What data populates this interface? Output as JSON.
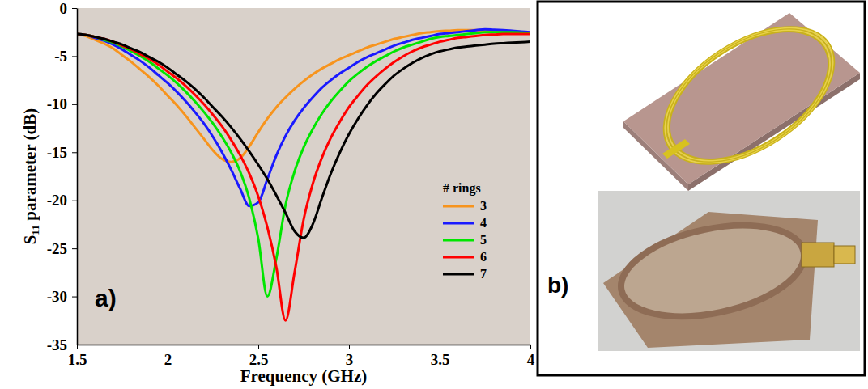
{
  "chart_data": {
    "type": "line",
    "panel_label": "a)",
    "x_label": "Frequency (GHz)",
    "y_label": "S₁₁ parameter  (dB)",
    "legend_title": "# rings",
    "legend": "right",
    "grid": false,
    "xlim": [
      1.5,
      4
    ],
    "ylim": [
      -35,
      0
    ],
    "xticks": [
      1.5,
      2,
      2.5,
      3,
      3.5,
      4
    ],
    "yticks": [
      -35,
      -30,
      -25,
      -20,
      -15,
      -10,
      -5,
      0
    ],
    "x": [
      1.5,
      1.55,
      1.6,
      1.65,
      1.7,
      1.75,
      1.8,
      1.85,
      1.9,
      1.95,
      2.0,
      2.05,
      2.1,
      2.15,
      2.2,
      2.25,
      2.3,
      2.35,
      2.4,
      2.45,
      2.5,
      2.55,
      2.6,
      2.65,
      2.7,
      2.75,
      2.8,
      2.85,
      2.9,
      2.95,
      3.0,
      3.05,
      3.1,
      3.15,
      3.2,
      3.25,
      3.3,
      3.35,
      3.4,
      3.45,
      3.5,
      3.55,
      3.6,
      3.65,
      3.7,
      3.75,
      3.8,
      3.85,
      3.9,
      3.95,
      4.0
    ],
    "series": [
      {
        "name": "3",
        "color": "#f7941d",
        "values": [
          -2.7,
          -2.9,
          -3.3,
          -3.7,
          -4.2,
          -4.9,
          -5.6,
          -6.4,
          -7.2,
          -8.1,
          -9.1,
          -10.1,
          -11.2,
          -12.4,
          -13.6,
          -14.8,
          -15.7,
          -16.0,
          -15.6,
          -14.4,
          -12.9,
          -11.5,
          -10.3,
          -9.3,
          -8.4,
          -7.6,
          -6.9,
          -6.3,
          -5.8,
          -5.3,
          -4.9,
          -4.5,
          -4.1,
          -3.8,
          -3.5,
          -3.2,
          -3.0,
          -2.8,
          -2.6,
          -2.5,
          -2.4,
          -2.35,
          -2.3,
          -2.3,
          -2.3,
          -2.35,
          -2.4,
          -2.45,
          -2.5,
          -2.55,
          -2.6
        ]
      },
      {
        "name": "4",
        "color": "#1a1aff",
        "values": [
          -2.7,
          -2.8,
          -3.1,
          -3.4,
          -3.8,
          -4.3,
          -4.9,
          -5.5,
          -6.2,
          -7.0,
          -7.8,
          -8.7,
          -9.7,
          -10.8,
          -12.0,
          -13.4,
          -15.0,
          -16.8,
          -18.8,
          -20.6,
          -20.2,
          -17.8,
          -15.3,
          -13.3,
          -11.7,
          -10.4,
          -9.3,
          -8.3,
          -7.5,
          -6.8,
          -6.2,
          -5.6,
          -5.1,
          -4.7,
          -4.3,
          -3.9,
          -3.6,
          -3.3,
          -3.1,
          -2.9,
          -2.7,
          -2.6,
          -2.5,
          -2.4,
          -2.3,
          -2.2,
          -2.25,
          -2.3,
          -2.35,
          -2.45,
          -2.5
        ]
      },
      {
        "name": "5",
        "color": "#00e600",
        "values": [
          -2.7,
          -2.8,
          -3.0,
          -3.3,
          -3.6,
          -4.0,
          -4.5,
          -5.0,
          -5.6,
          -6.3,
          -7.0,
          -7.8,
          -8.7,
          -9.7,
          -10.8,
          -12.0,
          -13.4,
          -15.0,
          -17.0,
          -19.8,
          -24.0,
          -30.0,
          -26.0,
          -20.5,
          -17.0,
          -14.5,
          -12.6,
          -11.0,
          -9.7,
          -8.6,
          -7.6,
          -6.8,
          -6.1,
          -5.5,
          -5.0,
          -4.5,
          -4.1,
          -3.8,
          -3.5,
          -3.2,
          -3.0,
          -2.9,
          -2.8,
          -2.7,
          -2.6,
          -2.5,
          -2.5,
          -2.5,
          -2.5,
          -2.55,
          -2.6
        ]
      },
      {
        "name": "6",
        "color": "#ff0000",
        "values": [
          -2.7,
          -2.8,
          -3.0,
          -3.2,
          -3.5,
          -3.9,
          -4.3,
          -4.8,
          -5.3,
          -5.9,
          -6.6,
          -7.3,
          -8.1,
          -9.0,
          -10.0,
          -11.1,
          -12.3,
          -13.7,
          -15.3,
          -17.2,
          -19.6,
          -22.8,
          -27.0,
          -32.5,
          -27.5,
          -22.0,
          -18.3,
          -15.6,
          -13.5,
          -11.8,
          -10.3,
          -9.1,
          -8.0,
          -7.1,
          -6.3,
          -5.6,
          -5.0,
          -4.5,
          -4.1,
          -3.8,
          -3.5,
          -3.3,
          -3.1,
          -3.0,
          -2.9,
          -2.8,
          -2.75,
          -2.7,
          -2.7,
          -2.7,
          -2.7
        ]
      },
      {
        "name": "7",
        "color": "#000000",
        "values": [
          -2.7,
          -2.8,
          -3.0,
          -3.2,
          -3.5,
          -3.8,
          -4.2,
          -4.6,
          -5.1,
          -5.6,
          -6.2,
          -6.9,
          -7.6,
          -8.4,
          -9.3,
          -10.3,
          -11.3,
          -12.4,
          -13.6,
          -14.9,
          -16.3,
          -17.8,
          -19.5,
          -21.3,
          -23.2,
          -23.9,
          -22.5,
          -19.8,
          -17.2,
          -15.0,
          -13.1,
          -11.5,
          -10.1,
          -8.9,
          -7.9,
          -7.0,
          -6.3,
          -5.7,
          -5.2,
          -4.8,
          -4.5,
          -4.3,
          -4.1,
          -4.0,
          -3.9,
          -3.8,
          -3.7,
          -3.65,
          -3.6,
          -3.55,
          -3.5
        ]
      }
    ]
  },
  "panel_b": {
    "label": "b)"
  }
}
